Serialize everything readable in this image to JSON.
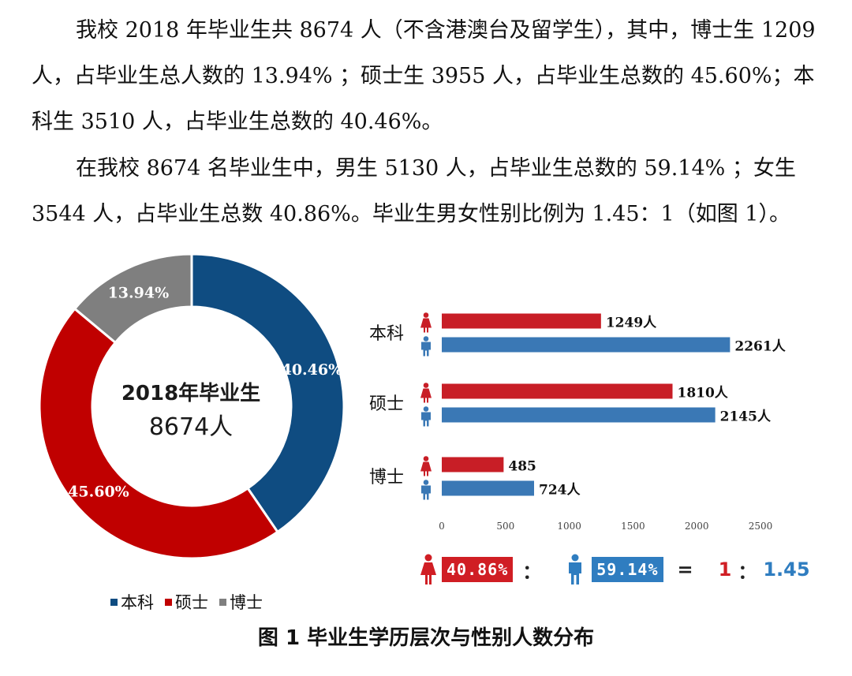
{
  "paragraphs": {
    "p1": "我校 2018 年毕业生共 8674 人（不含港澳台及留学生），其中，博士生 1209 人，占毕业生总人数的 13.94% ；硕士生 3955 人，占毕业生总数的 45.60%；本科生 3510 人，占毕业生总数的 40.46%。",
    "p2": "在我校 8674 名毕业生中，男生 5130 人，占毕业生总数的 59.14% ；女生 3544 人，占毕业生总数 40.86%。毕业生男女性别比例为 1.45：1（如图 1）。"
  },
  "colors": {
    "undergrad": "#0f4c81",
    "master": "#c00000",
    "doctor": "#7f7f7f",
    "female": "#c81e26",
    "male": "#3a78b5",
    "ratio_female": "#d01e24",
    "ratio_male": "#2f7dc0"
  },
  "icons": {
    "female": "female-person-icon",
    "male": "male-person-icon"
  },
  "chart_data": [
    {
      "type": "pie",
      "variant": "donut",
      "center_title": "2018年毕业生",
      "center_value": "8674人",
      "slices": [
        {
          "label": "本科",
          "value": 40.46,
          "display": "40.46%"
        },
        {
          "label": "硕士",
          "value": 45.6,
          "display": "45.60%"
        },
        {
          "label": "博士",
          "value": 13.94,
          "display": "13.94%"
        }
      ],
      "legend": [
        "本科",
        "硕士",
        "博士"
      ],
      "legend_position": "bottom"
    },
    {
      "type": "bar",
      "orientation": "horizontal",
      "categories": [
        "本科",
        "硕士",
        "博士"
      ],
      "series": [
        {
          "gender": "female",
          "values": [
            1249,
            1810,
            485
          ],
          "labels": [
            "1249人",
            "1810人",
            "485"
          ]
        },
        {
          "gender": "male",
          "values": [
            2261,
            2145,
            724
          ],
          "labels": [
            "2261人",
            "2145人",
            "724人"
          ]
        }
      ],
      "xlim": [
        0,
        2500
      ],
      "xticks": [
        "0",
        "500",
        "1000",
        "1500",
        "2000",
        "2500"
      ],
      "grid": false
    }
  ],
  "ratio": {
    "female_pct": "40.86%",
    "colon": "：",
    "male_pct": "59.14%",
    "equals": "=",
    "ratio_female": "1",
    "ratio_colon": "：",
    "ratio_male": "1.45"
  },
  "caption": "图 1  毕业生学历层次与性别人数分布"
}
